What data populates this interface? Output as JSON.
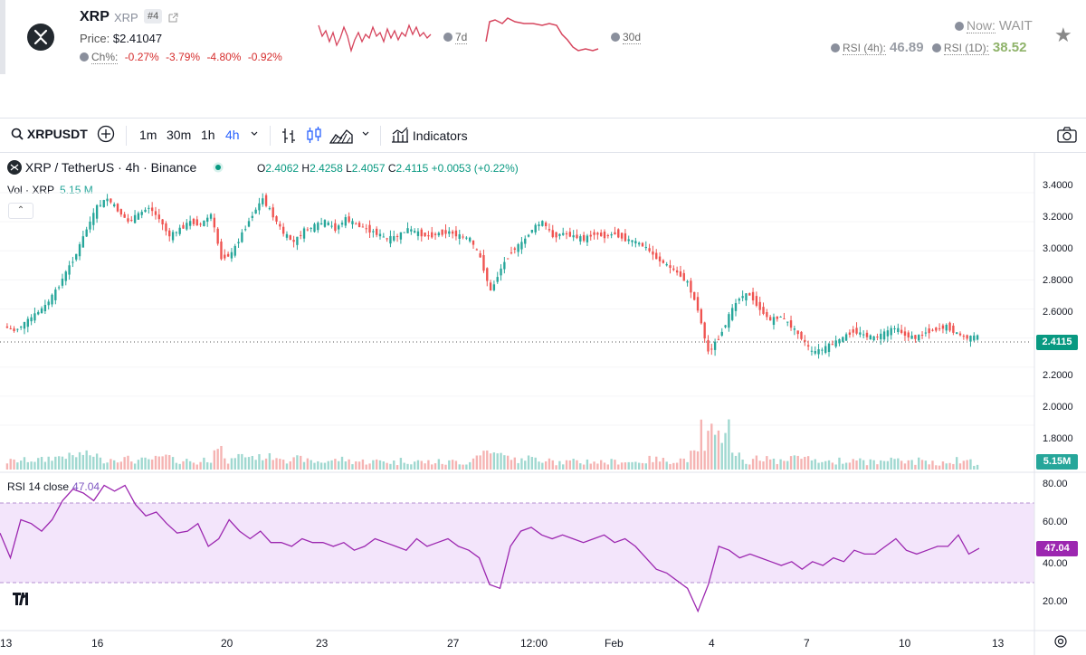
{
  "coin": {
    "name": "XRP",
    "symbol": "XRP",
    "rank": "#4",
    "price_label": "Price:",
    "price": "$2.41047",
    "ch_label": "Ch%:",
    "changes": [
      "-0.27%",
      "-3.79%",
      "-4.80%",
      "-0.92%"
    ],
    "spark_7d_label": "7d",
    "spark_30d_label": "30d",
    "now_label": "Now:",
    "now_value": "WAIT",
    "rsi4h_label": "RSI (4h):",
    "rsi4h_value": "46.89",
    "rsi1d_label": "RSI (1D):",
    "rsi1d_value": "38.52"
  },
  "toolbar": {
    "symbol": "XRPUSDT",
    "intervals": [
      "1m",
      "30m",
      "1h",
      "4h"
    ],
    "active_interval": "4h",
    "indicators_label": "Indicators"
  },
  "legend": {
    "pair": "XRP / TetherUS · 4h · Binance",
    "open_label": "O",
    "open": "2.4062",
    "high_label": "H",
    "high": "2.4258",
    "low_label": "L",
    "low": "2.4057",
    "close_label": "C",
    "close": "2.4115",
    "change": "+0.0053 (+0.22%)",
    "vol_label": "Vol · XRP",
    "vol_value": "5.15 M",
    "rsi_label": "RSI 14 close",
    "rsi_value": "47.04"
  },
  "price_axis": [
    "3.4000",
    "3.2000",
    "3.0000",
    "2.8000",
    "2.6000",
    "2.4115",
    "2.2000",
    "2.0000",
    "1.8000"
  ],
  "last_price_tag": "2.4115",
  "volume_tag": "5.15M",
  "rsi_axis": [
    "80.00",
    "60.00",
    "40.00",
    "20.00"
  ],
  "rsi_tag": "47.04",
  "x_axis": [
    "13",
    "16",
    "20",
    "23",
    "27",
    "12:00",
    "Feb",
    "4",
    "7",
    "10",
    "13"
  ],
  "colors": {
    "up": "#26a69a",
    "down": "#ef5350",
    "rsi": "#9c27b0",
    "rsi_band": "#f3e5fb",
    "sparkline": "#d6455d"
  },
  "chart_data": {
    "type": "candlestick",
    "title": "XRP / TetherUS · 4h · Binance",
    "ylim": [
      1.7,
      3.45
    ],
    "last_close": 2.4115,
    "price_path": [
      2.48,
      2.45,
      2.5,
      2.56,
      2.62,
      2.72,
      2.85,
      2.98,
      3.15,
      3.3,
      3.36,
      3.28,
      3.2,
      3.25,
      3.3,
      3.22,
      3.1,
      3.15,
      3.2,
      3.18,
      3.25,
      2.95,
      2.98,
      3.12,
      3.25,
      3.36,
      3.24,
      3.12,
      3.06,
      3.14,
      3.17,
      3.2,
      3.15,
      3.22,
      3.18,
      3.15,
      3.12,
      3.08,
      3.1,
      3.15,
      3.12,
      3.1,
      3.12,
      3.13,
      3.1,
      3.08,
      2.95,
      2.72,
      2.88,
      3.0,
      3.05,
      3.15,
      3.2,
      3.1,
      3.12,
      3.1,
      3.08,
      3.12,
      3.1,
      3.12,
      3.08,
      3.06,
      3.02,
      2.95,
      2.9,
      2.85,
      2.78,
      2.6,
      2.3,
      2.4,
      2.55,
      2.68,
      2.7,
      2.6,
      2.52,
      2.55,
      2.48,
      2.4,
      2.3,
      2.32,
      2.36,
      2.4,
      2.45,
      2.42,
      2.4,
      2.43,
      2.47,
      2.42,
      2.4,
      2.44,
      2.46,
      2.48,
      2.43,
      2.4,
      2.41
    ],
    "rsi_14": [
      55,
      42,
      62,
      60,
      56,
      62,
      72,
      78,
      76,
      72,
      80,
      77,
      80,
      70,
      64,
      66,
      60,
      55,
      56,
      60,
      48,
      52,
      62,
      56,
      52,
      56,
      50,
      50,
      48,
      52,
      50,
      50,
      48,
      50,
      46,
      48,
      52,
      50,
      48,
      46,
      52,
      48,
      50,
      52,
      48,
      46,
      42,
      28,
      26,
      48,
      56,
      58,
      54,
      52,
      54,
      52,
      50,
      52,
      54,
      50,
      52,
      48,
      42,
      36,
      34,
      30,
      26,
      14,
      28,
      48,
      46,
      42,
      44,
      42,
      40,
      38,
      40,
      36,
      40,
      38,
      42,
      40,
      46,
      44,
      44,
      48,
      52,
      46,
      44,
      46,
      48,
      48,
      54,
      44,
      47
    ],
    "rsi_ylim": [
      10,
      85
    ],
    "rsi_band": [
      30,
      70
    ]
  }
}
